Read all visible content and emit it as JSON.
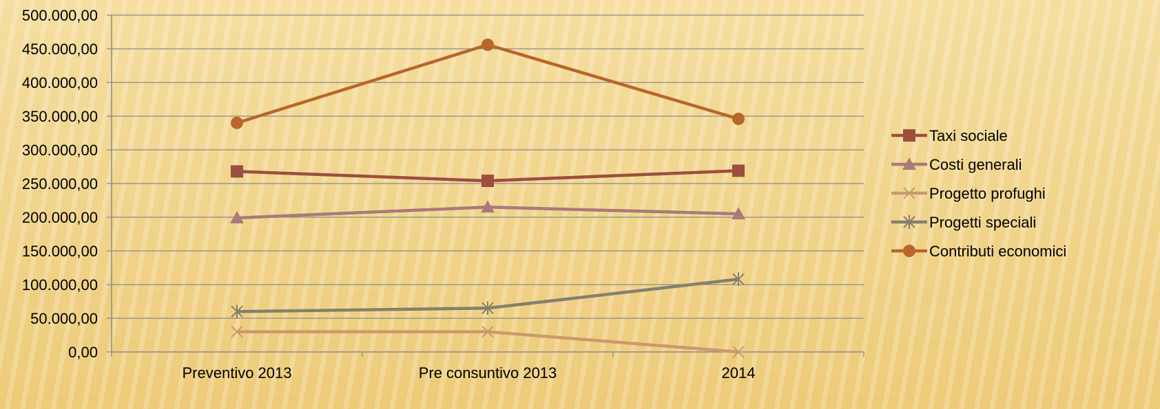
{
  "chart_data": {
    "type": "line",
    "categories": [
      "Preventivo 2013",
      "Pre consuntivo 2013",
      "2014"
    ],
    "ylim": [
      0,
      500000
    ],
    "yticks": [
      "0,00",
      "50.000,00",
      "100.000,00",
      "150.000,00",
      "200.000,00",
      "250.000,00",
      "300.000,00",
      "350.000,00",
      "400.000,00",
      "450.000,00",
      "500.000,00"
    ],
    "ytick_values": [
      0,
      50000,
      100000,
      150000,
      200000,
      250000,
      300000,
      350000,
      400000,
      450000,
      500000
    ],
    "grid": true,
    "legend_position": "right",
    "series": [
      {
        "name": "Taxi sociale",
        "values": [
          268000,
          254000,
          269000
        ],
        "color": "#9c4f3e",
        "marker": "square"
      },
      {
        "name": "Costi generali",
        "values": [
          199000,
          215000,
          205000
        ],
        "color": "#a97a7a",
        "marker": "triangle"
      },
      {
        "name": "Progetto profughi",
        "values": [
          30000,
          30000,
          0
        ],
        "color": "#c99a6c",
        "marker": "x"
      },
      {
        "name": "Progetti speciali",
        "values": [
          60000,
          65000,
          108000
        ],
        "color": "#857f6e",
        "marker": "star"
      },
      {
        "name": "Contributi economici",
        "values": [
          340000,
          456000,
          346000
        ],
        "color": "#b8662a",
        "marker": "circle"
      }
    ]
  }
}
